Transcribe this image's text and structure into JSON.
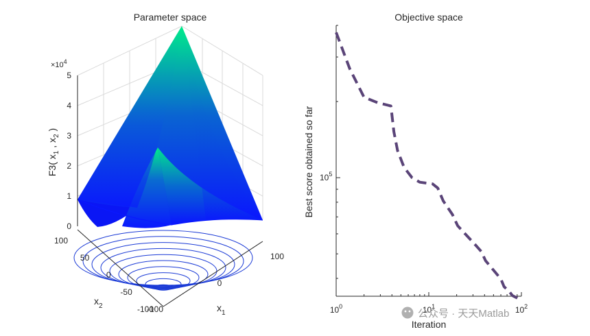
{
  "colors": {
    "surface_low": "#0a14ff",
    "surface_high": "#00e68c",
    "contour": "#1a3ad6",
    "curve": "#5a4478",
    "grid": "#d9d9d9",
    "axis": "#262626",
    "watermark": "#9a9a9a"
  },
  "icons": {
    "watermark_logo": "wechat-logo-icon"
  },
  "watermark": {
    "text": "公众号 · 天天Matlab"
  },
  "chart_data": [
    {
      "type": "surface",
      "title": "Parameter space",
      "xlabel": "x",
      "xlabel_sub": "1",
      "ylabel": "x",
      "ylabel_sub": "2",
      "zlabel": "F3( x , x )",
      "zlabel_parts": [
        "F3( x",
        "1",
        " , x",
        "2",
        " )"
      ],
      "z_multiplier": "×10",
      "z_multiplier_exp": "4",
      "function": "F3",
      "xlim": [
        -100,
        100
      ],
      "ylim": [
        -100,
        100
      ],
      "zlim": [
        0,
        50000
      ],
      "x_ticks": [
        -100,
        0,
        100
      ],
      "y_ticks": [
        100,
        50,
        0,
        -50,
        -100
      ],
      "z_ticks": [
        0,
        1,
        2,
        3,
        4,
        5
      ],
      "x_tick_labels": [
        "-100",
        "0",
        "100"
      ],
      "y_tick_labels": [
        "100",
        "50",
        "0",
        "-50",
        "-100"
      ],
      "z_tick_labels": [
        "0",
        "1",
        "2",
        "3",
        "4",
        "5"
      ],
      "contour_lines": 10,
      "grid": true,
      "colormap": "winter"
    },
    {
      "type": "line",
      "title": "Objective space",
      "xlabel": "Iteration",
      "ylabel": "Best score obtained so far",
      "x_scale": "log",
      "y_scale": "log",
      "xlim": [
        1,
        100
      ],
      "ylim": [
        34000,
        400000
      ],
      "x_tick_labels": [
        {
          "base": "10",
          "exp": "0"
        },
        {
          "base": "10",
          "exp": "1"
        },
        {
          "base": "10",
          "exp": "2"
        }
      ],
      "y_tick_labels": [
        {
          "base": "10",
          "exp": "5",
          "value": 100000
        }
      ],
      "line_style": "dashed",
      "series": [
        {
          "x": [
            1,
            1.4,
            2,
            2.8,
            3.5,
            3.9,
            4.2,
            4.6,
            5.4,
            6.6,
            8,
            11,
            12.5,
            14.3,
            18,
            20.5,
            33,
            37,
            41,
            60,
            65,
            75,
            80,
            88,
            92,
            100
          ],
          "y": [
            375000,
            270000,
            208000,
            198000,
            194000,
            192000,
            152000,
            128000,
            110000,
            100000,
            96000,
            94500,
            91000,
            81000,
            71500,
            64600,
            53500,
            51000,
            47000,
            39800,
            37100,
            35300,
            34200,
            33600,
            33300,
            33000
          ]
        }
      ]
    }
  ]
}
